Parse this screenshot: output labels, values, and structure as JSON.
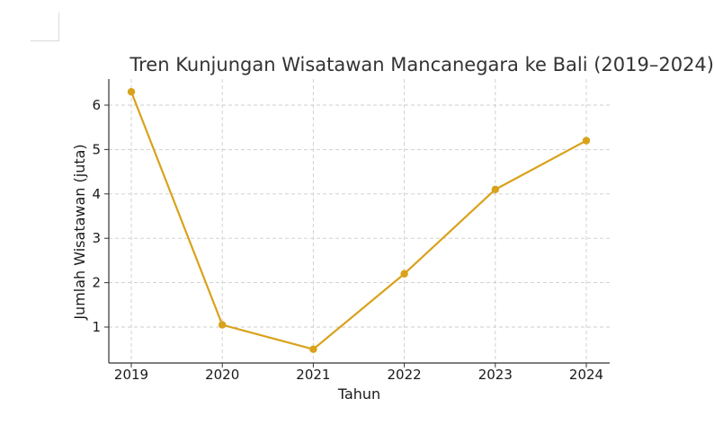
{
  "chart_data": {
    "type": "line",
    "title": "Tren Kunjungan Wisatawan Mancanegara ke Bali (2019–2024)",
    "xlabel": "Tahun",
    "ylabel": "Jumlah Wisatawan (juta)",
    "x": [
      "2019",
      "2020",
      "2021",
      "2022",
      "2023",
      "2024"
    ],
    "series": [
      {
        "values": [
          6.3,
          1.05,
          0.5,
          2.2,
          4.1,
          5.2
        ]
      }
    ],
    "yticks": [
      1,
      2,
      3,
      4,
      5,
      6
    ],
    "ylim": [
      0.2,
      6.6
    ],
    "grid": true,
    "line_color": "#D9A21B"
  }
}
